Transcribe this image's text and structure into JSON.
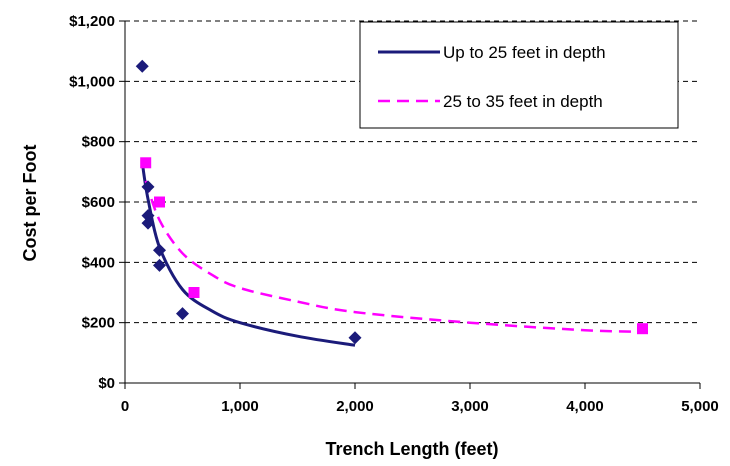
{
  "chart_data": {
    "type": "scatter",
    "title": "",
    "xlabel": "Trench Length (feet)",
    "ylabel": "Cost per Foot",
    "xlim": [
      0,
      5000
    ],
    "ylim": [
      0,
      1200
    ],
    "x_tick_labels": [
      "0",
      "1,000",
      "2,000",
      "3,000",
      "4,000",
      "5,000"
    ],
    "y_tick_labels": [
      "$0",
      "$200",
      "$400",
      "$600",
      "$800",
      "$1,000",
      "$1,200"
    ],
    "grid": "horizontal dashed",
    "legend_position": "top-right",
    "series": [
      {
        "name": "Up to 25 feet in depth",
        "marker": "diamond",
        "color": "#1b1b7a",
        "points": [
          {
            "x": 150,
            "y": 1050
          },
          {
            "x": 200,
            "y": 650
          },
          {
            "x": 200,
            "y": 555
          },
          {
            "x": 200,
            "y": 530
          },
          {
            "x": 300,
            "y": 440
          },
          {
            "x": 300,
            "y": 390
          },
          {
            "x": 500,
            "y": 230
          },
          {
            "x": 2000,
            "y": 150
          }
        ],
        "trendline": {
          "style": "solid",
          "color": "#1b1b7a",
          "x_range": [
            150,
            2000
          ],
          "points": [
            {
              "x": 150,
              "y": 730
            },
            {
              "x": 200,
              "y": 610
            },
            {
              "x": 300,
              "y": 450
            },
            {
              "x": 500,
              "y": 310
            },
            {
              "x": 750,
              "y": 240
            },
            {
              "x": 1000,
              "y": 200
            },
            {
              "x": 1500,
              "y": 155
            },
            {
              "x": 2000,
              "y": 125
            }
          ]
        }
      },
      {
        "name": "25 to 35 feet in depth",
        "marker": "square",
        "color": "#ff00ff",
        "points": [
          {
            "x": 180,
            "y": 730
          },
          {
            "x": 300,
            "y": 600
          },
          {
            "x": 600,
            "y": 300
          },
          {
            "x": 4500,
            "y": 180
          }
        ],
        "trendline": {
          "style": "dashed",
          "color": "#ff00ff",
          "x_range": [
            180,
            4500
          ],
          "points": [
            {
              "x": 180,
              "y": 670
            },
            {
              "x": 300,
              "y": 540
            },
            {
              "x": 500,
              "y": 430
            },
            {
              "x": 750,
              "y": 360
            },
            {
              "x": 1000,
              "y": 315
            },
            {
              "x": 1500,
              "y": 270
            },
            {
              "x": 2000,
              "y": 235
            },
            {
              "x": 3000,
              "y": 200
            },
            {
              "x": 4000,
              "y": 175
            },
            {
              "x": 4500,
              "y": 170
            }
          ]
        }
      }
    ]
  }
}
